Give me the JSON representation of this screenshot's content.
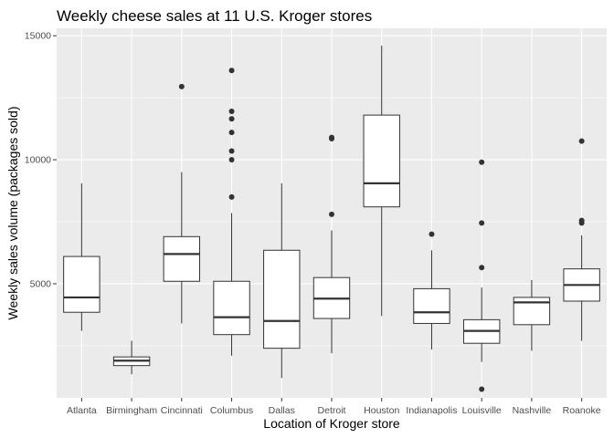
{
  "chart_data": {
    "type": "boxplot",
    "title": "Weekly cheese sales at 11 U.S. Kroger stores",
    "xlabel": "Location of Kroger store",
    "ylabel": "Weekly sales volume (packages sold)",
    "ylim": [
      400,
      15300
    ],
    "yticks": [
      5000,
      10000,
      15000
    ],
    "grid": true,
    "colors": {
      "panel": "#ebebeb",
      "grid_major": "#ffffff",
      "box_fill": "#ffffff",
      "box_line": "#333333",
      "outlier": "#333333"
    },
    "categories": [
      "Atlanta",
      "Birmingham",
      "Cincinnati",
      "Columbus",
      "Dallas",
      "Detroit",
      "Houston",
      "Indianapolis",
      "Louisville",
      "Nashville",
      "Roanoke"
    ],
    "boxes": [
      {
        "category": "Atlanta",
        "whisker_low": 3100,
        "q1": 3850,
        "median": 4450,
        "q3": 6100,
        "whisker_high": 9050,
        "outliers": []
      },
      {
        "category": "Birmingham",
        "whisker_low": 1350,
        "q1": 1700,
        "median": 1900,
        "q3": 2050,
        "whisker_high": 2700,
        "outliers": []
      },
      {
        "category": "Cincinnati",
        "whisker_low": 3400,
        "q1": 5100,
        "median": 6200,
        "q3": 6900,
        "whisker_high": 9500,
        "outliers": [
          12950
        ]
      },
      {
        "category": "Columbus",
        "whisker_low": 2100,
        "q1": 2950,
        "median": 3650,
        "q3": 5100,
        "whisker_high": 7850,
        "outliers": [
          8500,
          10000,
          10350,
          11100,
          11650,
          11950,
          13600
        ]
      },
      {
        "category": "Dallas",
        "whisker_low": 1200,
        "q1": 2400,
        "median": 3500,
        "q3": 6350,
        "whisker_high": 9050,
        "outliers": []
      },
      {
        "category": "Detroit",
        "whisker_low": 2200,
        "q1": 3600,
        "median": 4400,
        "q3": 5250,
        "whisker_high": 7150,
        "outliers": [
          7800,
          10850,
          10900
        ]
      },
      {
        "category": "Houston",
        "whisker_low": 3700,
        "q1": 8100,
        "median": 9050,
        "q3": 11800,
        "whisker_high": 14600,
        "outliers": []
      },
      {
        "category": "Indianapolis",
        "whisker_low": 2350,
        "q1": 3400,
        "median": 3850,
        "q3": 4800,
        "whisker_high": 6350,
        "outliers": [
          7000
        ]
      },
      {
        "category": "Louisville",
        "whisker_low": 1850,
        "q1": 2600,
        "median": 3100,
        "q3": 3550,
        "whisker_high": 4850,
        "outliers": [
          750,
          5650,
          7450,
          9900
        ]
      },
      {
        "category": "Nashville",
        "whisker_low": 2300,
        "q1": 3350,
        "median": 4250,
        "q3": 4450,
        "whisker_high": 5150,
        "outliers": []
      },
      {
        "category": "Roanoke",
        "whisker_low": 2700,
        "q1": 4300,
        "median": 4950,
        "q3": 5600,
        "whisker_high": 6950,
        "outliers": [
          7450,
          7550,
          10750
        ]
      }
    ]
  }
}
